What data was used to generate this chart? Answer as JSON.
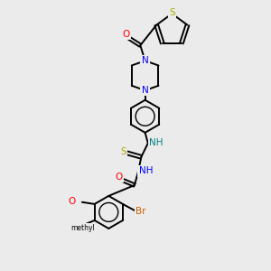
{
  "background_color": "#ebebeb",
  "bond_color": "#000000",
  "atom_colors": {
    "N": "#0000FF",
    "O": "#FF0000",
    "S": "#AAAA00",
    "Br": "#CC6600",
    "C": "#000000",
    "NH": "#008080"
  },
  "figsize": [
    3.0,
    3.0
  ],
  "dpi": 100
}
